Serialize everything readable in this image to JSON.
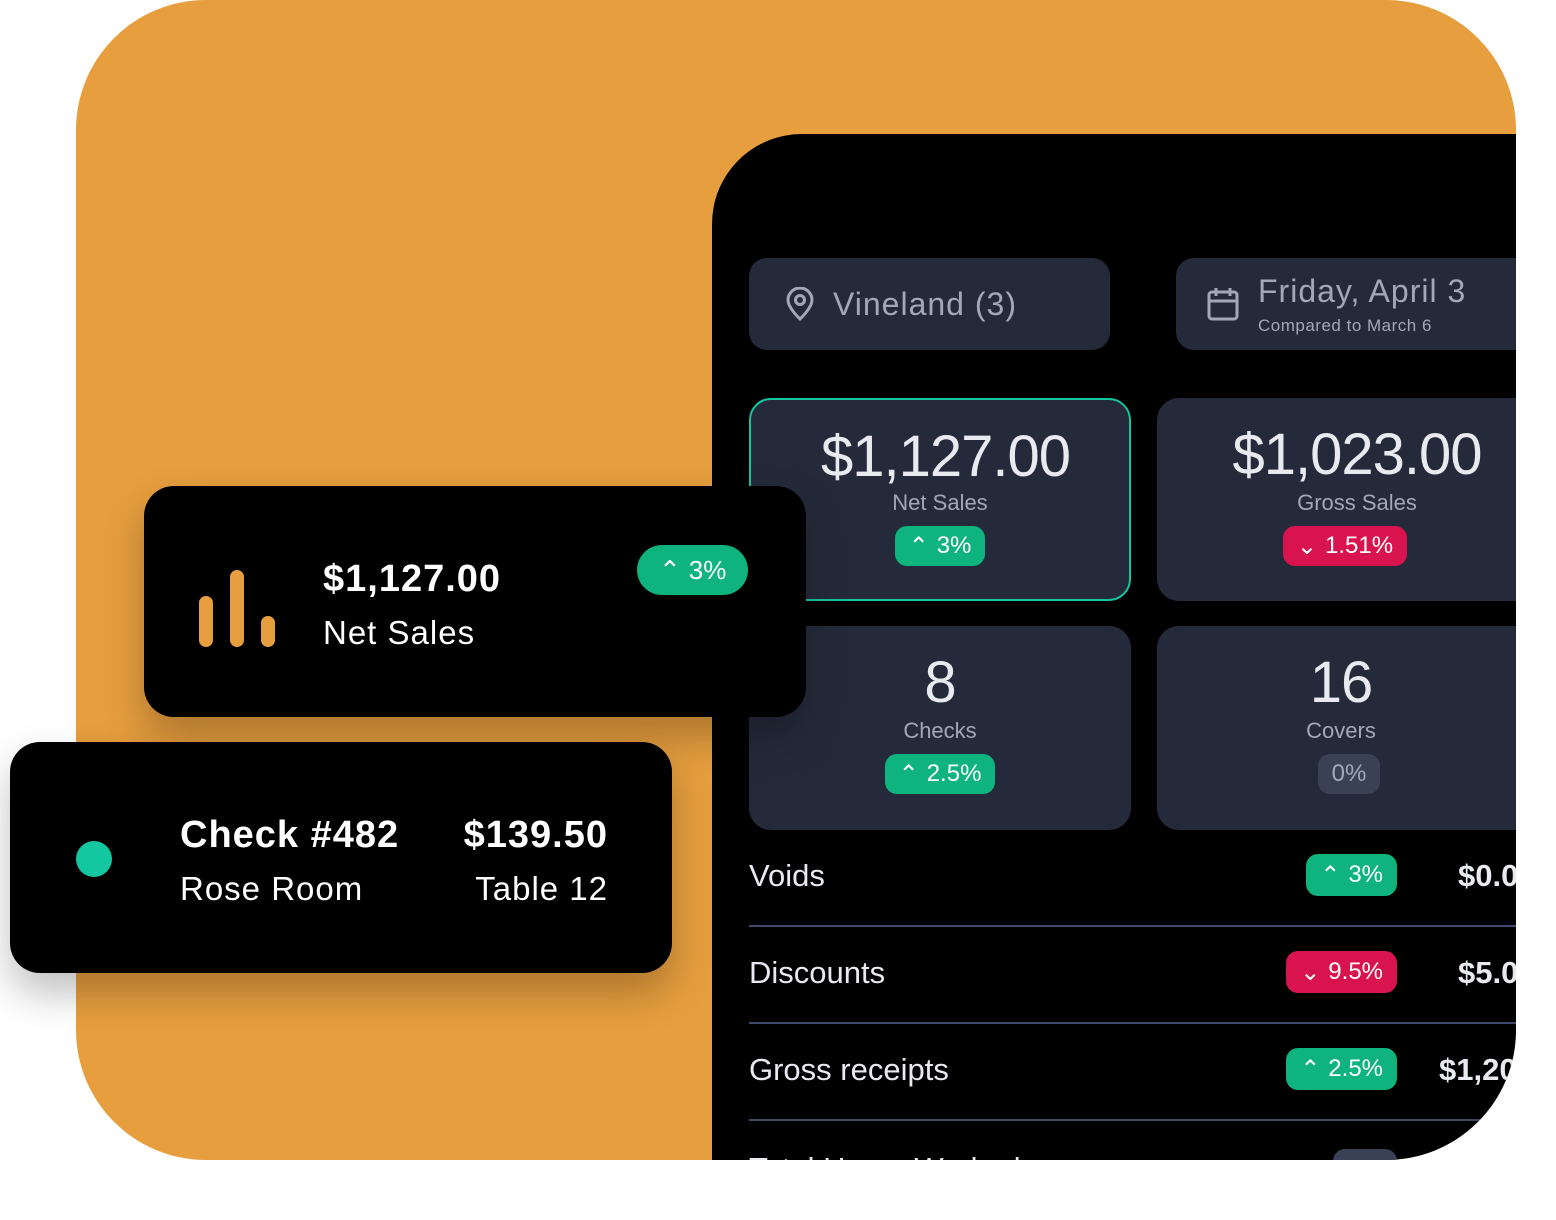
{
  "colors": {
    "brand": "#e69e3e",
    "up": "#0fb37e",
    "down": "#d8134d",
    "panel": "#252a3a"
  },
  "location": {
    "icon": "location-pin-icon",
    "label": "Vineland (3)"
  },
  "date": {
    "icon": "calendar-icon",
    "label": "Friday, April 3",
    "compare": "Compared to March 6"
  },
  "tiles": [
    {
      "value": "$1,127.00",
      "label": "Net Sales",
      "change": "3%",
      "dir": "up"
    },
    {
      "value": "$1,023.00",
      "label": "Gross Sales",
      "change": "1.51%",
      "dir": "down"
    },
    {
      "value": "8",
      "label": "Checks",
      "change": "2.5%",
      "dir": "up"
    },
    {
      "value": "16",
      "label": "Covers",
      "change": "0%",
      "dir": "flat"
    }
  ],
  "rows": [
    {
      "name": "Voids",
      "change": "3%",
      "dir": "up",
      "amount": "$0.0"
    },
    {
      "name": "Discounts",
      "change": "9.5%",
      "dir": "down",
      "amount": "$5.0"
    },
    {
      "name": "Gross receipts",
      "change": "2.5%",
      "dir": "up",
      "amount": "$1,20"
    },
    {
      "name": "Total Hours Worked"
    }
  ],
  "sales_card": {
    "icon": "bar-chart-icon",
    "amount": "$1,127.00",
    "label": "Net Sales",
    "change": "3%"
  },
  "check_card": {
    "title": "Check #482",
    "room": "Rose Room",
    "amount": "$139.50",
    "table": "Table 12"
  }
}
